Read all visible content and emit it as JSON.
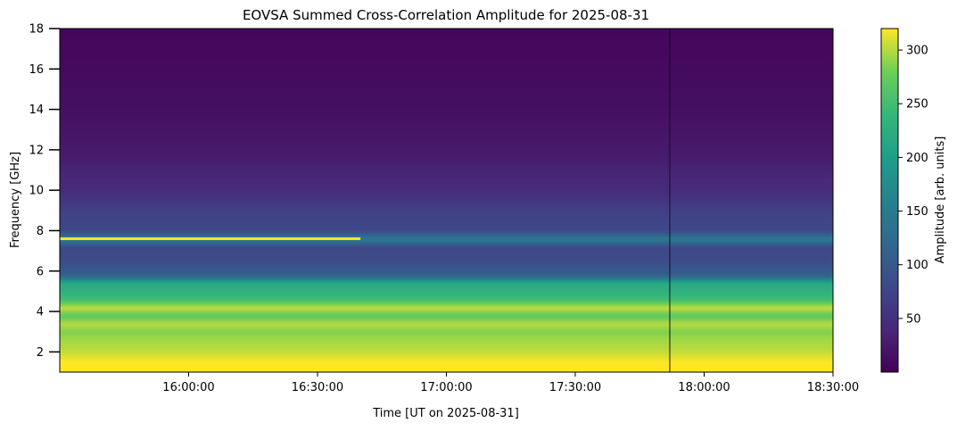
{
  "chart_data": {
    "type": "heatmap",
    "title": "EOVSA Summed Cross-Correlation Amplitude for 2025-08-31",
    "xlabel": "Time [UT on 2025-08-31]",
    "ylabel": "Frequency [GHz]",
    "x_range": [
      "15:30:00",
      "18:30:00"
    ],
    "x_ticks": [
      "16:00:00",
      "16:30:00",
      "17:00:00",
      "17:30:00",
      "18:00:00",
      "18:30:00"
    ],
    "ylim": [
      1,
      18
    ],
    "y_ticks": [
      2,
      4,
      6,
      8,
      10,
      12,
      14,
      16,
      18
    ],
    "colorbar": {
      "label": "Amplitude [arb. units]",
      "range": [
        0,
        320
      ],
      "ticks": [
        50,
        100,
        150,
        200,
        250,
        300
      ],
      "colormap": "viridis"
    },
    "frequency_profile": [
      {
        "f": 1.0,
        "amp": 330
      },
      {
        "f": 1.4,
        "amp": 325
      },
      {
        "f": 1.8,
        "amp": 310
      },
      {
        "f": 2.2,
        "amp": 300
      },
      {
        "f": 2.6,
        "amp": 295
      },
      {
        "f": 3.0,
        "amp": 285
      },
      {
        "f": 3.4,
        "amp": 300
      },
      {
        "f": 3.8,
        "amp": 270
      },
      {
        "f": 4.2,
        "amp": 305
      },
      {
        "f": 4.6,
        "amp": 250
      },
      {
        "f": 5.0,
        "amp": 230
      },
      {
        "f": 5.4,
        "amp": 220
      },
      {
        "f": 5.8,
        "amp": 110
      },
      {
        "f": 6.5,
        "amp": 85
      },
      {
        "f": 7.2,
        "amp": 80
      },
      {
        "f": 7.6,
        "amp": 150
      },
      {
        "f": 8.0,
        "amp": 80
      },
      {
        "f": 9.0,
        "amp": 70
      },
      {
        "f": 10.0,
        "amp": 45
      },
      {
        "f": 12.0,
        "amp": 25
      },
      {
        "f": 14.0,
        "amp": 15
      },
      {
        "f": 16.0,
        "amp": 10
      },
      {
        "f": 18.0,
        "amp": 6
      }
    ],
    "features": [
      {
        "kind": "bright_band",
        "f_center": 7.6,
        "time_start": "15:30:00",
        "time_end": "16:40:00",
        "amp": 320
      },
      {
        "kind": "gap_line",
        "time": "17:52:00"
      }
    ]
  }
}
